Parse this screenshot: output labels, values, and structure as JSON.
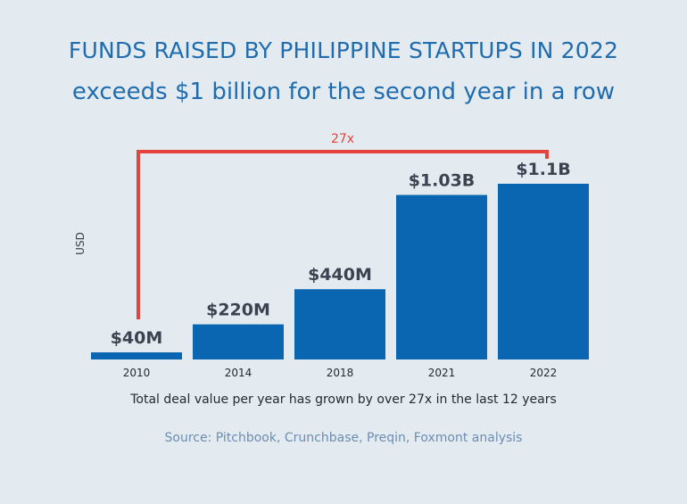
{
  "chart_data": {
    "type": "bar",
    "title": "FUNDS RAISED BY PHILIPPINE STARTUPS IN 2022",
    "subtitle": "exceeds $1 billion for the second year in a row",
    "ylabel": "USD",
    "categories": [
      "2010",
      "2014",
      "2018",
      "2021",
      "2022"
    ],
    "values": [
      40000000,
      220000000,
      440000000,
      1030000000,
      1100000000
    ],
    "data_labels": [
      "$40M",
      "$220M",
      "$440M",
      "$1.03B",
      "$1.1B"
    ],
    "ylim": [
      0,
      1100000000
    ],
    "annotation": {
      "label": "27x",
      "from": "2010",
      "to": "2022",
      "color": "#e5433d"
    },
    "bar_color": "#0a66b0",
    "grid": false
  },
  "caption": "Total deal value per year has grown by over 27x in the last 12 years",
  "source": "Source: Pitchbook, Crunchbase, Preqin, Foxmont analysis"
}
